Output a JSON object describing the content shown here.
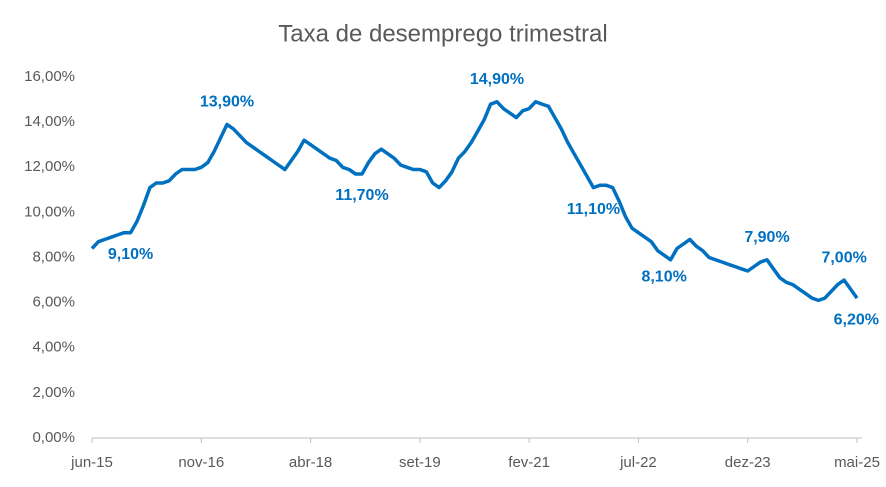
{
  "chart_data": {
    "type": "line",
    "title": "Taxa de desemprego trimestral",
    "categories": [
      "jun-15",
      null,
      null,
      null,
      null,
      null,
      null,
      null,
      null,
      null,
      null,
      null,
      null,
      null,
      null,
      null,
      null,
      "nov-16",
      null,
      null,
      null,
      null,
      null,
      null,
      null,
      null,
      null,
      null,
      null,
      null,
      null,
      null,
      null,
      null,
      "abr-18",
      null,
      null,
      null,
      null,
      null,
      null,
      null,
      null,
      null,
      null,
      null,
      null,
      null,
      null,
      null,
      null,
      "set-19",
      null,
      null,
      null,
      null,
      null,
      null,
      null,
      null,
      null,
      null,
      null,
      null,
      null,
      null,
      null,
      null,
      "fev-21",
      null,
      null,
      null,
      null,
      null,
      null,
      null,
      null,
      null,
      null,
      null,
      null,
      null,
      null,
      null,
      null,
      "jul-22",
      null,
      null,
      null,
      null,
      null,
      null,
      null,
      null,
      null,
      null,
      null,
      null,
      null,
      null,
      null,
      null,
      "dez-23",
      null,
      null,
      null,
      null,
      null,
      null,
      null,
      null,
      null,
      null,
      null,
      null,
      null,
      null,
      null,
      null,
      "mai-25"
    ],
    "series": [
      {
        "name": "Taxa de desemprego",
        "color": "#0070c0",
        "values": [
          8.4,
          8.7,
          8.8,
          8.9,
          9.0,
          9.1,
          9.1,
          9.6,
          10.3,
          11.1,
          11.3,
          11.3,
          11.4,
          11.7,
          11.9,
          11.9,
          11.9,
          12.0,
          12.2,
          12.7,
          13.3,
          13.9,
          13.7,
          13.4,
          13.1,
          12.9,
          12.7,
          12.5,
          12.3,
          12.1,
          11.9,
          12.3,
          12.7,
          13.2,
          13.0,
          12.8,
          12.6,
          12.4,
          12.3,
          12.0,
          11.9,
          11.7,
          11.7,
          12.2,
          12.6,
          12.8,
          12.6,
          12.4,
          12.1,
          12.0,
          11.9,
          11.9,
          11.8,
          11.3,
          11.1,
          11.4,
          11.8,
          12.4,
          12.7,
          13.1,
          13.6,
          14.1,
          14.8,
          14.9,
          14.6,
          14.4,
          14.2,
          14.5,
          14.6,
          14.9,
          14.8,
          14.7,
          14.2,
          13.7,
          13.1,
          12.6,
          12.1,
          11.6,
          11.1,
          11.2,
          11.2,
          11.1,
          10.5,
          9.8,
          9.3,
          9.1,
          8.9,
          8.7,
          8.3,
          8.1,
          7.9,
          8.4,
          8.6,
          8.8,
          8.5,
          8.3,
          8.0,
          7.9,
          7.8,
          7.7,
          7.6,
          7.5,
          7.4,
          7.6,
          7.8,
          7.9,
          7.5,
          7.1,
          6.9,
          6.8,
          6.6,
          6.4,
          6.2,
          6.1,
          6.2,
          6.5,
          6.8,
          7.0,
          6.6,
          6.2
        ],
        "value_labels": [
          null,
          null,
          null,
          null,
          null,
          null,
          "9,10%",
          null,
          null,
          null,
          null,
          null,
          null,
          null,
          null,
          null,
          null,
          null,
          null,
          null,
          null,
          "13,90%",
          null,
          null,
          null,
          null,
          null,
          null,
          null,
          null,
          null,
          null,
          null,
          null,
          null,
          null,
          null,
          null,
          null,
          null,
          null,
          null,
          "11,70%",
          null,
          null,
          null,
          null,
          null,
          null,
          null,
          null,
          null,
          null,
          null,
          null,
          null,
          null,
          null,
          null,
          null,
          null,
          null,
          null,
          "14,90%",
          null,
          null,
          null,
          null,
          null,
          null,
          null,
          null,
          null,
          null,
          null,
          null,
          null,
          null,
          "11,10%",
          null,
          null,
          null,
          null,
          null,
          null,
          null,
          null,
          null,
          null,
          "8,10%",
          null,
          null,
          null,
          null,
          null,
          null,
          null,
          null,
          null,
          null,
          null,
          null,
          null,
          null,
          null,
          "7,90%",
          null,
          null,
          null,
          null,
          null,
          null,
          null,
          null,
          null,
          null,
          null,
          "7,00%",
          null,
          "6,20%"
        ]
      }
    ],
    "ylim": [
      0,
      16
    ],
    "yticks": [
      {
        "value": 0,
        "label": "0,00%"
      },
      {
        "value": 2,
        "label": "2,00%"
      },
      {
        "value": 4,
        "label": "4,00%"
      },
      {
        "value": 6,
        "label": "6,00%"
      },
      {
        "value": 8,
        "label": "8,00%"
      },
      {
        "value": 10,
        "label": "10,00%"
      },
      {
        "value": 12,
        "label": "12,00%"
      },
      {
        "value": 14,
        "label": "14,00%"
      },
      {
        "value": 16,
        "label": "16,00%"
      }
    ],
    "grid": false
  }
}
